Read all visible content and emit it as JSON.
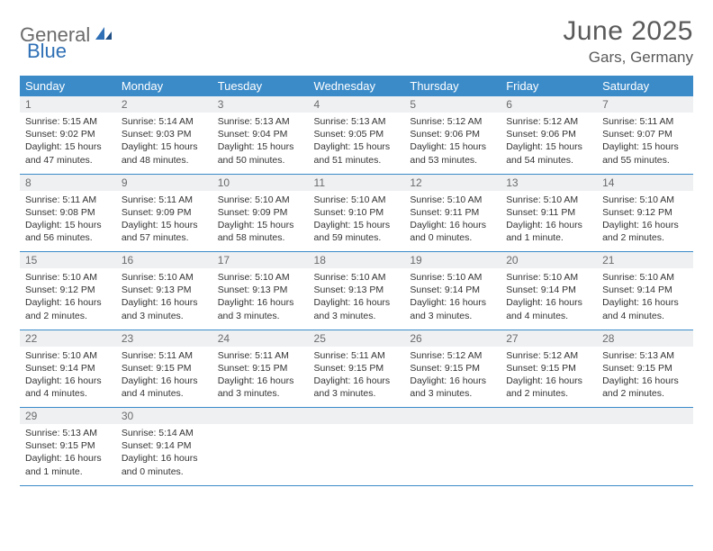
{
  "logo": {
    "part1": "General",
    "part2": "Blue"
  },
  "title": "June 2025",
  "location": "Gars, Germany",
  "colors": {
    "header_bg": "#3b8bc9",
    "header_text": "#ffffff",
    "daynum_bg": "#eef0f2",
    "daynum_text": "#6b6b6b",
    "border": "#3b8bc9",
    "body_text": "#333333",
    "logo_gray": "#6b6b6b",
    "logo_blue": "#2e6fb5",
    "title_gray": "#5a5a5a"
  },
  "weekdays": [
    "Sunday",
    "Monday",
    "Tuesday",
    "Wednesday",
    "Thursday",
    "Friday",
    "Saturday"
  ],
  "weeks": [
    [
      {
        "n": "1",
        "sr": "5:15 AM",
        "ss": "9:02 PM",
        "dl": "15 hours and 47 minutes."
      },
      {
        "n": "2",
        "sr": "5:14 AM",
        "ss": "9:03 PM",
        "dl": "15 hours and 48 minutes."
      },
      {
        "n": "3",
        "sr": "5:13 AM",
        "ss": "9:04 PM",
        "dl": "15 hours and 50 minutes."
      },
      {
        "n": "4",
        "sr": "5:13 AM",
        "ss": "9:05 PM",
        "dl": "15 hours and 51 minutes."
      },
      {
        "n": "5",
        "sr": "5:12 AM",
        "ss": "9:06 PM",
        "dl": "15 hours and 53 minutes."
      },
      {
        "n": "6",
        "sr": "5:12 AM",
        "ss": "9:06 PM",
        "dl": "15 hours and 54 minutes."
      },
      {
        "n": "7",
        "sr": "5:11 AM",
        "ss": "9:07 PM",
        "dl": "15 hours and 55 minutes."
      }
    ],
    [
      {
        "n": "8",
        "sr": "5:11 AM",
        "ss": "9:08 PM",
        "dl": "15 hours and 56 minutes."
      },
      {
        "n": "9",
        "sr": "5:11 AM",
        "ss": "9:09 PM",
        "dl": "15 hours and 57 minutes."
      },
      {
        "n": "10",
        "sr": "5:10 AM",
        "ss": "9:09 PM",
        "dl": "15 hours and 58 minutes."
      },
      {
        "n": "11",
        "sr": "5:10 AM",
        "ss": "9:10 PM",
        "dl": "15 hours and 59 minutes."
      },
      {
        "n": "12",
        "sr": "5:10 AM",
        "ss": "9:11 PM",
        "dl": "16 hours and 0 minutes."
      },
      {
        "n": "13",
        "sr": "5:10 AM",
        "ss": "9:11 PM",
        "dl": "16 hours and 1 minute."
      },
      {
        "n": "14",
        "sr": "5:10 AM",
        "ss": "9:12 PM",
        "dl": "16 hours and 2 minutes."
      }
    ],
    [
      {
        "n": "15",
        "sr": "5:10 AM",
        "ss": "9:12 PM",
        "dl": "16 hours and 2 minutes."
      },
      {
        "n": "16",
        "sr": "5:10 AM",
        "ss": "9:13 PM",
        "dl": "16 hours and 3 minutes."
      },
      {
        "n": "17",
        "sr": "5:10 AM",
        "ss": "9:13 PM",
        "dl": "16 hours and 3 minutes."
      },
      {
        "n": "18",
        "sr": "5:10 AM",
        "ss": "9:13 PM",
        "dl": "16 hours and 3 minutes."
      },
      {
        "n": "19",
        "sr": "5:10 AM",
        "ss": "9:14 PM",
        "dl": "16 hours and 3 minutes."
      },
      {
        "n": "20",
        "sr": "5:10 AM",
        "ss": "9:14 PM",
        "dl": "16 hours and 4 minutes."
      },
      {
        "n": "21",
        "sr": "5:10 AM",
        "ss": "9:14 PM",
        "dl": "16 hours and 4 minutes."
      }
    ],
    [
      {
        "n": "22",
        "sr": "5:10 AM",
        "ss": "9:14 PM",
        "dl": "16 hours and 4 minutes."
      },
      {
        "n": "23",
        "sr": "5:11 AM",
        "ss": "9:15 PM",
        "dl": "16 hours and 4 minutes."
      },
      {
        "n": "24",
        "sr": "5:11 AM",
        "ss": "9:15 PM",
        "dl": "16 hours and 3 minutes."
      },
      {
        "n": "25",
        "sr": "5:11 AM",
        "ss": "9:15 PM",
        "dl": "16 hours and 3 minutes."
      },
      {
        "n": "26",
        "sr": "5:12 AM",
        "ss": "9:15 PM",
        "dl": "16 hours and 3 minutes."
      },
      {
        "n": "27",
        "sr": "5:12 AM",
        "ss": "9:15 PM",
        "dl": "16 hours and 2 minutes."
      },
      {
        "n": "28",
        "sr": "5:13 AM",
        "ss": "9:15 PM",
        "dl": "16 hours and 2 minutes."
      }
    ],
    [
      {
        "n": "29",
        "sr": "5:13 AM",
        "ss": "9:15 PM",
        "dl": "16 hours and 1 minute."
      },
      {
        "n": "30",
        "sr": "5:14 AM",
        "ss": "9:14 PM",
        "dl": "16 hours and 0 minutes."
      },
      null,
      null,
      null,
      null,
      null
    ]
  ],
  "labels": {
    "sunrise": "Sunrise:",
    "sunset": "Sunset:",
    "daylight": "Daylight:"
  }
}
